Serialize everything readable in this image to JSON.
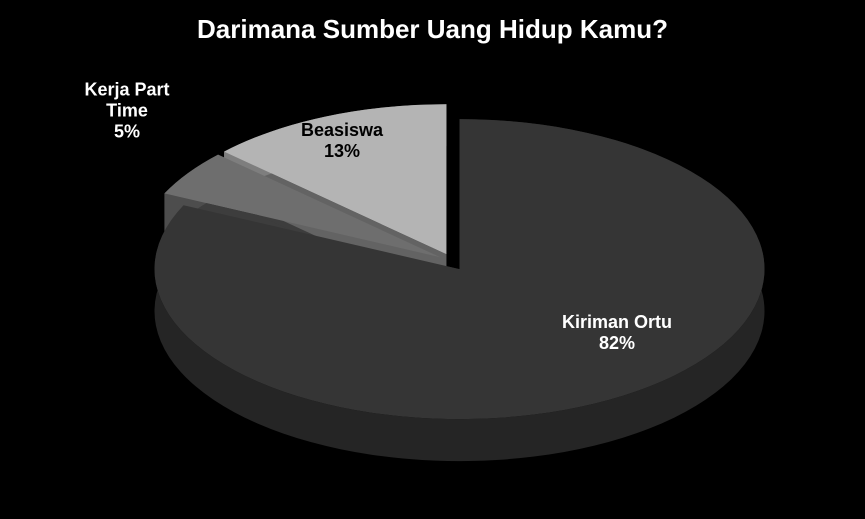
{
  "chart_data": {
    "type": "pie",
    "title": "Darimana Sumber Uang Hidup Kamu?",
    "categories": [
      "Kiriman Ortu",
      "Kerja Part Time",
      "Beasiswa"
    ],
    "values": [
      82,
      5,
      13
    ],
    "value_labels": [
      "82%",
      "5%",
      "13%"
    ],
    "colors": [
      "#353535",
      "#6e6e6e",
      "#b4b4b4"
    ]
  }
}
